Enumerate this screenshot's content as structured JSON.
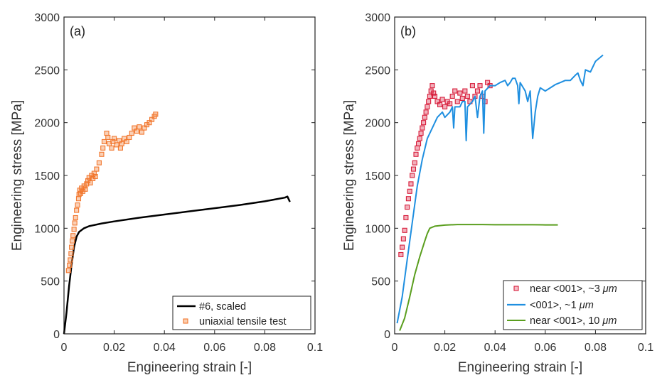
{
  "chart_data": [
    {
      "type": "line",
      "panel_label": "(a)",
      "xlabel": "Engineering strain [-]",
      "ylabel": "Engineering stress [MPa]",
      "xlim": [
        0,
        0.1
      ],
      "ylim": [
        0,
        3000
      ],
      "xticks": [
        0,
        0.02,
        0.04,
        0.06,
        0.08,
        0.1
      ],
      "xtick_labels": [
        "0",
        "0.02",
        "0.04",
        "0.06",
        "0.08",
        "0.1"
      ],
      "yticks": [
        0,
        500,
        1000,
        1500,
        2000,
        2500,
        3000
      ],
      "ytick_labels": [
        "0",
        "500",
        "1000",
        "1500",
        "2000",
        "2500",
        "3000"
      ],
      "grid": false,
      "legend_position": "bottom-right",
      "series": [
        {
          "name": "#6, scaled",
          "style": "line",
          "color": "#000000",
          "x": [
            0,
            0.001,
            0.002,
            0.003,
            0.004,
            0.005,
            0.006,
            0.008,
            0.01,
            0.015,
            0.02,
            0.03,
            0.04,
            0.05,
            0.06,
            0.07,
            0.08,
            0.088,
            0.089,
            0.09
          ],
          "y": [
            0,
            200,
            450,
            650,
            820,
            920,
            965,
            1000,
            1020,
            1045,
            1065,
            1100,
            1130,
            1160,
            1190,
            1220,
            1255,
            1290,
            1300,
            1250
          ]
        },
        {
          "name": "uniaxial tensile test",
          "style": "markers",
          "color": "#f2772e",
          "x": [
            0.0018,
            0.0022,
            0.0025,
            0.0028,
            0.003,
            0.0033,
            0.0036,
            0.004,
            0.0043,
            0.0046,
            0.005,
            0.0054,
            0.0058,
            0.006,
            0.0063,
            0.0066,
            0.007,
            0.0075,
            0.008,
            0.0085,
            0.009,
            0.0095,
            0.01,
            0.0105,
            0.011,
            0.0115,
            0.012,
            0.0125,
            0.013,
            0.014,
            0.015,
            0.0155,
            0.016,
            0.017,
            0.0175,
            0.018,
            0.019,
            0.0195,
            0.02,
            0.021,
            0.022,
            0.0225,
            0.023,
            0.024,
            0.025,
            0.026,
            0.027,
            0.028,
            0.029,
            0.03,
            0.031,
            0.032,
            0.033,
            0.034,
            0.035,
            0.036,
            0.0365
          ],
          "y": [
            600,
            650,
            700,
            760,
            820,
            880,
            930,
            990,
            1050,
            1100,
            1170,
            1220,
            1280,
            1320,
            1360,
            1330,
            1380,
            1350,
            1400,
            1370,
            1420,
            1450,
            1480,
            1430,
            1500,
            1470,
            1520,
            1490,
            1560,
            1620,
            1700,
            1760,
            1820,
            1900,
            1860,
            1800,
            1760,
            1820,
            1850,
            1790,
            1830,
            1760,
            1800,
            1850,
            1820,
            1860,
            1900,
            1950,
            1920,
            1960,
            1910,
            1950,
            1980,
            2000,
            2030,
            2060,
            2080
          ]
        }
      ]
    },
    {
      "type": "line",
      "panel_label": "(b)",
      "xlabel": "Engineering strain [-]",
      "ylabel": "Engineering stress [MPa]",
      "xlim": [
        0,
        0.1
      ],
      "ylim": [
        0,
        3000
      ],
      "xticks": [
        0,
        0.02,
        0.04,
        0.06,
        0.08,
        0.1
      ],
      "xtick_labels": [
        "0",
        "0.02",
        "0.04",
        "0.06",
        "0.08",
        "0.1"
      ],
      "yticks": [
        0,
        500,
        1000,
        1500,
        2000,
        2500,
        3000
      ],
      "ytick_labels": [
        "0",
        "500",
        "1000",
        "1500",
        "2000",
        "2500",
        "3000"
      ],
      "grid": false,
      "legend_position": "bottom-right",
      "series": [
        {
          "name": "near <001>, ~3 μm",
          "legend_prefix": "near <001>, ~3 ",
          "legend_unit": "μm",
          "style": "markers",
          "color": "#d81e3c",
          "x": [
            0.0025,
            0.003,
            0.0035,
            0.004,
            0.0045,
            0.005,
            0.0055,
            0.006,
            0.0065,
            0.007,
            0.0075,
            0.008,
            0.0085,
            0.009,
            0.0095,
            0.01,
            0.0105,
            0.011,
            0.0115,
            0.012,
            0.0125,
            0.013,
            0.0135,
            0.014,
            0.0145,
            0.015,
            0.0155,
            0.016,
            0.017,
            0.018,
            0.019,
            0.02,
            0.021,
            0.022,
            0.023,
            0.024,
            0.025,
            0.026,
            0.027,
            0.028,
            0.029,
            0.03,
            0.031,
            0.032,
            0.033,
            0.034,
            0.035,
            0.036,
            0.037,
            0.038
          ],
          "y": [
            750,
            820,
            900,
            980,
            1100,
            1200,
            1280,
            1350,
            1420,
            1500,
            1560,
            1620,
            1700,
            1760,
            1800,
            1850,
            1900,
            1950,
            2000,
            2050,
            2100,
            2150,
            2200,
            2250,
            2300,
            2350,
            2280,
            2250,
            2200,
            2170,
            2220,
            2150,
            2200,
            2180,
            2250,
            2300,
            2200,
            2280,
            2230,
            2300,
            2250,
            2200,
            2350,
            2250,
            2300,
            2350,
            2250,
            2200,
            2380,
            2350
          ]
        },
        {
          "name": "<001>, ~1 μm",
          "legend_prefix": "<001>, ~1 ",
          "legend_unit": "μm",
          "style": "line",
          "color": "#1f8fe0",
          "x": [
            0.001,
            0.003,
            0.005,
            0.007,
            0.009,
            0.011,
            0.013,
            0.015,
            0.017,
            0.019,
            0.02,
            0.022,
            0.023,
            0.0235,
            0.024,
            0.026,
            0.027,
            0.028,
            0.0285,
            0.029,
            0.031,
            0.032,
            0.033,
            0.034,
            0.035,
            0.0355,
            0.036,
            0.038,
            0.04,
            0.042,
            0.044,
            0.045,
            0.046,
            0.047,
            0.048,
            0.049,
            0.0495,
            0.05,
            0.052,
            0.053,
            0.054,
            0.055,
            0.056,
            0.057,
            0.058,
            0.06,
            0.062,
            0.064,
            0.066,
            0.068,
            0.07,
            0.072,
            0.073,
            0.074,
            0.075,
            0.076,
            0.078,
            0.08,
            0.083
          ],
          "y": [
            100,
            350,
            700,
            1050,
            1400,
            1650,
            1850,
            1950,
            2050,
            2100,
            2050,
            2100,
            2150,
            1950,
            2150,
            2150,
            2200,
            2200,
            1830,
            2150,
            2200,
            2250,
            2050,
            2250,
            2300,
            1900,
            2300,
            2350,
            2350,
            2380,
            2400,
            2350,
            2380,
            2420,
            2420,
            2350,
            2180,
            2380,
            2300,
            2200,
            2300,
            1850,
            2100,
            2250,
            2330,
            2300,
            2330,
            2360,
            2380,
            2400,
            2400,
            2450,
            2470,
            2400,
            2350,
            2500,
            2480,
            2580,
            2640
          ]
        },
        {
          "name": "near <001>, 10 μm",
          "legend_prefix": "near <001>, 10 ",
          "legend_unit": "μm",
          "style": "line",
          "color": "#5a9e1e",
          "x": [
            0.002,
            0.004,
            0.006,
            0.008,
            0.01,
            0.012,
            0.013,
            0.014,
            0.015,
            0.016,
            0.018,
            0.02,
            0.025,
            0.03,
            0.035,
            0.04,
            0.045,
            0.05,
            0.055,
            0.06,
            0.065
          ],
          "y": [
            30,
            150,
            350,
            560,
            730,
            880,
            950,
            1000,
            1010,
            1020,
            1025,
            1030,
            1035,
            1035,
            1035,
            1033,
            1033,
            1033,
            1033,
            1032,
            1032
          ]
        }
      ]
    }
  ]
}
